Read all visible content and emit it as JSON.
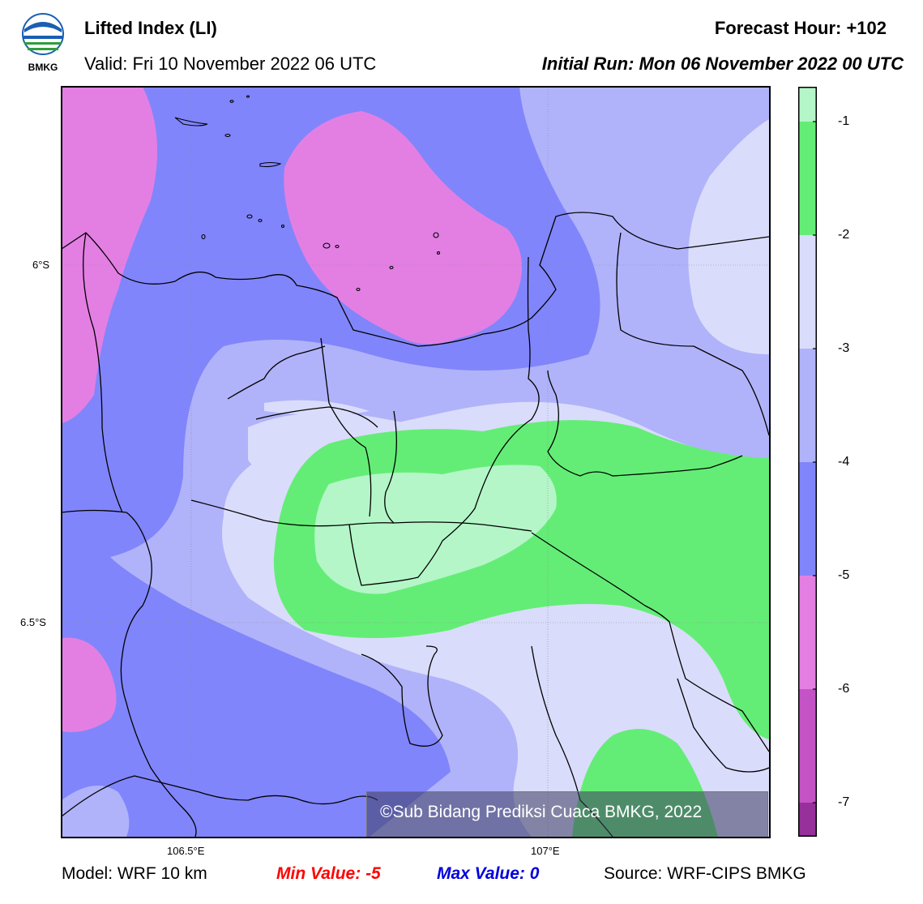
{
  "header": {
    "title": "Lifted Index (LI)",
    "valid": "Valid: Fri 10 November 2022 06 UTC",
    "forecast_hour": "Forecast Hour: +102",
    "initial_run": "Initial Run: Mon 06 November 2022 00 UTC",
    "logo_text": "BMKG"
  },
  "map": {
    "lat_labels": [
      "6°S",
      "6.5°S"
    ],
    "lon_labels": [
      "106.5°E",
      "107°E"
    ],
    "watermark": "©Sub Bidang Prediksi Cuaca BMKG, 2022"
  },
  "colorbar": {
    "labels": [
      "-1",
      "-2",
      "-3",
      "-4",
      "-5",
      "-6",
      "-7"
    ],
    "colors": [
      "#b4f6c8",
      "#64ed76",
      "#dadcfb",
      "#b0b3fa",
      "#8185fb",
      "#e37fe3",
      "#c454c6",
      "#97309b"
    ]
  },
  "footer": {
    "model": "Model: WRF 10 km",
    "min_value": "Min Value: -5",
    "max_value": "Max Value: 0",
    "source": "Source: WRF-CIPS BMKG"
  }
}
